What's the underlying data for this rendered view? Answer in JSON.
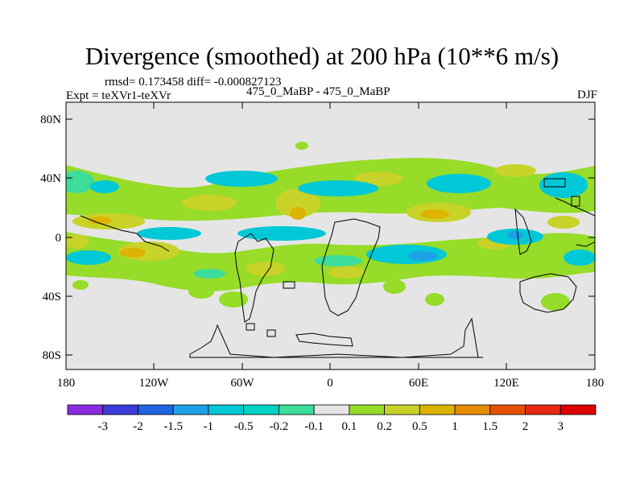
{
  "header": {
    "title": "Divergence (smoothed) at 200 hPa (10**6 m/s)",
    "stats": "rmsd= 0.173458 diff= -0.000827123",
    "experiment": "Expt = teXVr1-teXVr",
    "runs": "475_0_MaBP - 475_0_MaBP",
    "season": "DJF"
  },
  "map": {
    "lat_ticks": [
      "80N",
      "40N",
      "0",
      "40S",
      "80S"
    ],
    "lon_ticks": [
      "180",
      "120W",
      "60W",
      "0",
      "60E",
      "120E",
      "180"
    ],
    "background_color": "#e5e5e5"
  },
  "colorbar": {
    "labels": [
      "-3",
      "-2",
      "-1.5",
      "-1",
      "-0.5",
      "-0.2",
      "-0.1",
      "0.1",
      "0.2",
      "0.5",
      "1",
      "1.5",
      "2",
      "3"
    ],
    "colors": [
      "#8a2be2",
      "#3b3bd9",
      "#1e64e0",
      "#1ea0e6",
      "#00c8d7",
      "#00d2c3",
      "#3cdc9b",
      "#e5e5e5",
      "#96dc28",
      "#c8d228",
      "#dcb400",
      "#e68c00",
      "#e65000",
      "#e62814",
      "#dc0000"
    ]
  }
}
